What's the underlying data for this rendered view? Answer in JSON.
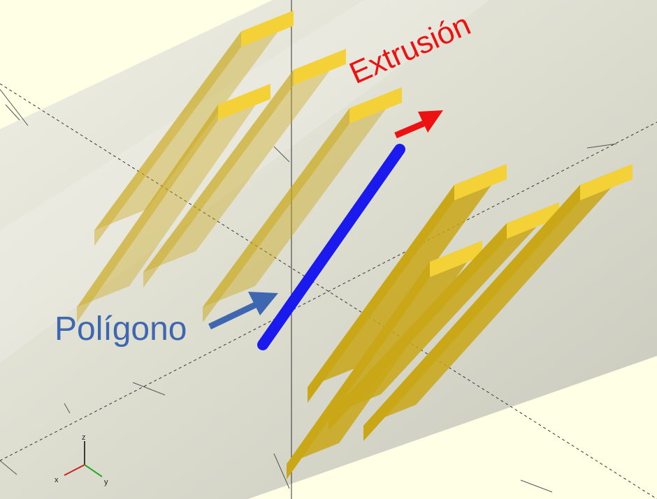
{
  "labels": {
    "polygon": "Polígono",
    "extrusion": "Extrusión"
  },
  "axis_gizmo": {
    "x": "x",
    "y": "y",
    "z": "z"
  },
  "colors": {
    "background": "#ffffe6",
    "cylinder": "#d6d6c8",
    "extrusion_top": "#f4d237",
    "extrusion_side": "#c9a716",
    "polygon_edge": "#1a1aee",
    "polygon_label": "#3f67b1",
    "extrusion_label": "#ee1111"
  },
  "icons": {
    "polygon_pointer": "arrow-right-icon",
    "extrusion_pointer": "arrow-right-icon"
  }
}
